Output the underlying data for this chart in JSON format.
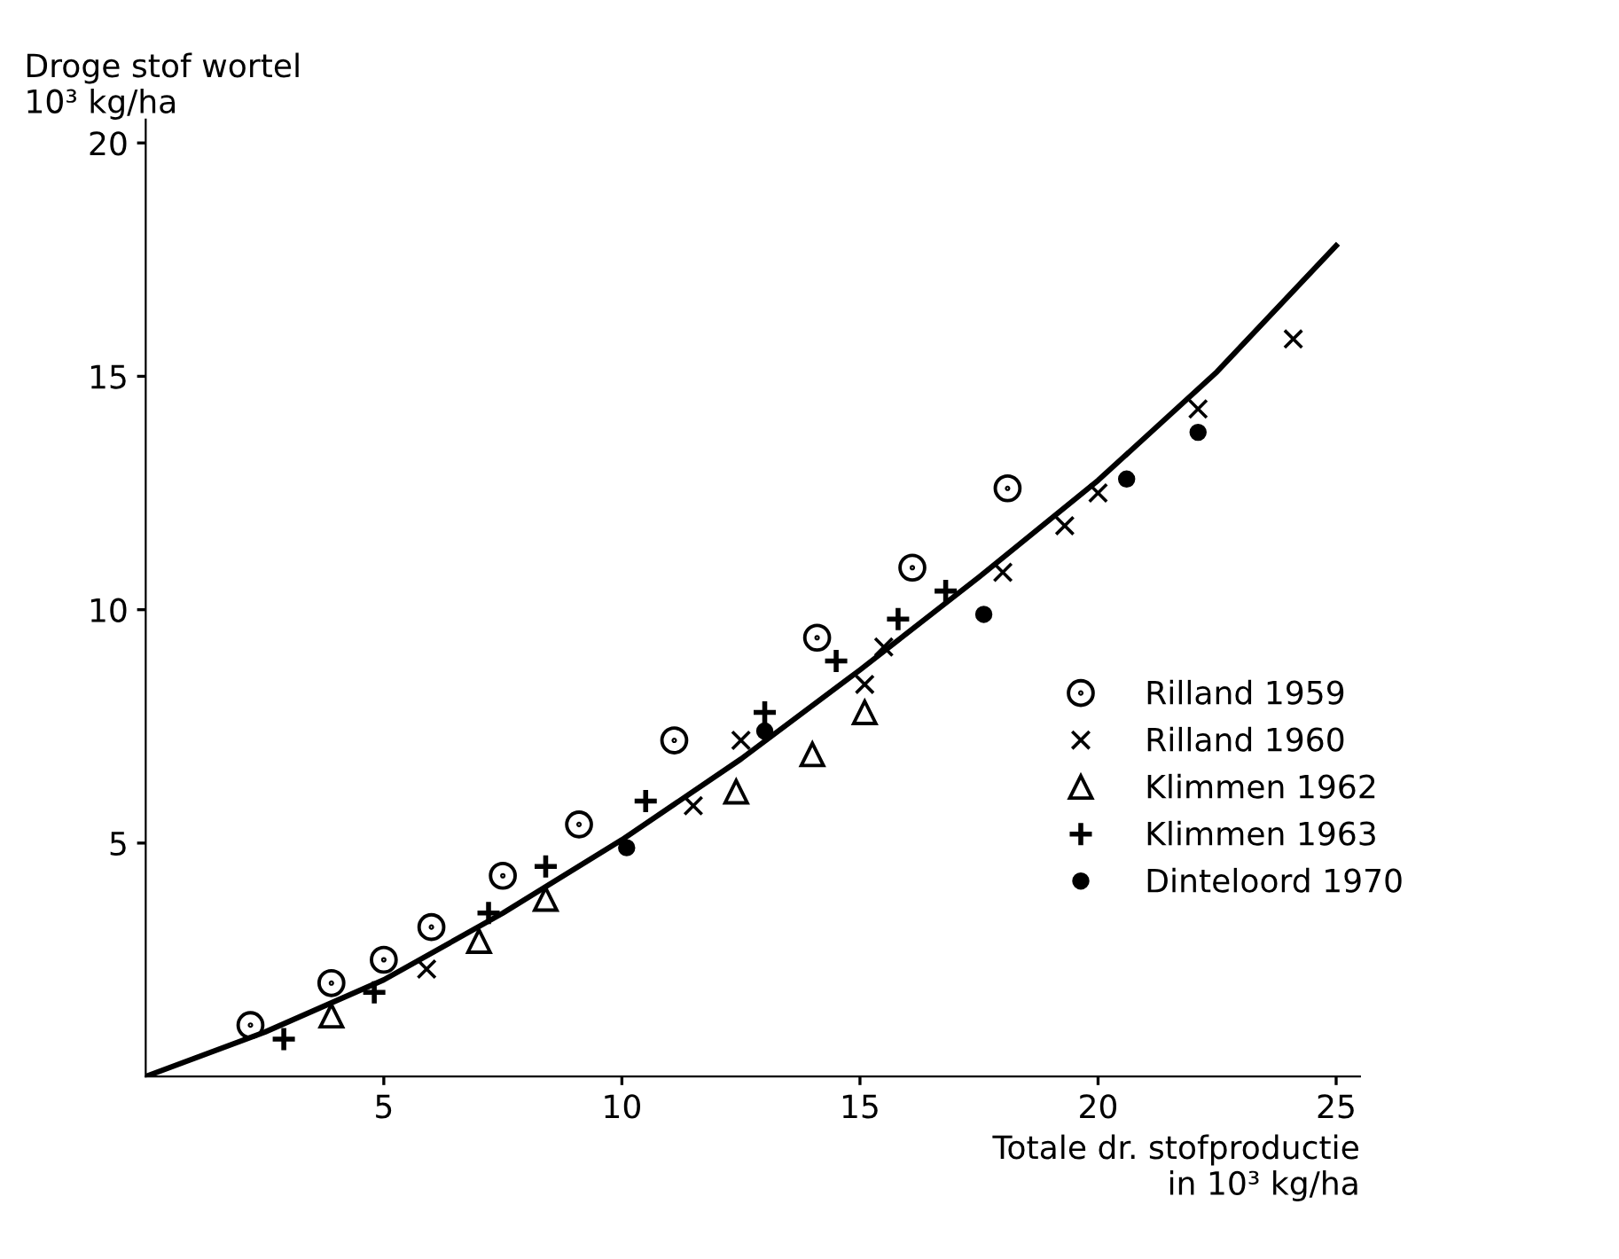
{
  "chart_data": {
    "type": "scatter",
    "xlabel": "Totale dr. stofproductie\nin 10³ kg/ha",
    "ylabel": "Droge stof wortel\n10³ kg/ha",
    "xlim": [
      0,
      25.5
    ],
    "ylim": [
      0,
      20.5
    ],
    "xticks": [
      5,
      10,
      15,
      20,
      25
    ],
    "yticks": [
      5,
      10,
      15,
      20
    ],
    "grid": false,
    "legend": "right",
    "series": [
      {
        "name": "Rilland 1959",
        "color": "#000000",
        "marker": "circle",
        "x": [
          2.2,
          3.9,
          5.0,
          6.0,
          7.5,
          9.1,
          11.1,
          14.1,
          16.1,
          18.1
        ],
        "values": [
          1.1,
          2.0,
          2.5,
          3.2,
          4.3,
          5.4,
          7.2,
          9.4,
          10.9,
          12.6
        ]
      },
      {
        "name": "Rilland 1960",
        "color": "#000000",
        "marker": "x",
        "x": [
          5.9,
          11.5,
          12.5,
          15.1,
          15.5,
          18.0,
          19.3,
          20.0,
          22.1,
          24.1
        ],
        "values": [
          2.3,
          5.8,
          7.2,
          8.4,
          9.2,
          10.8,
          11.8,
          12.5,
          14.3,
          15.8
        ]
      },
      {
        "name": "Klimmen 1962",
        "color": "#000000",
        "marker": "triangle",
        "x": [
          3.9,
          7.0,
          8.4,
          12.4,
          14.0,
          15.1
        ],
        "values": [
          1.3,
          2.9,
          3.8,
          6.1,
          6.9,
          7.8
        ]
      },
      {
        "name": "Klimmen 1963",
        "color": "#000000",
        "marker": "cross",
        "x": [
          2.9,
          4.8,
          7.2,
          8.4,
          10.5,
          13.0,
          14.5,
          15.8,
          16.8
        ],
        "values": [
          0.8,
          1.8,
          3.5,
          4.5,
          5.9,
          7.8,
          8.9,
          9.8,
          10.4
        ]
      },
      {
        "name": "Dinteloord 1970",
        "color": "#000000",
        "marker": "point",
        "x": [
          10.1,
          13.0,
          17.6,
          20.6,
          22.1
        ],
        "values": [
          4.9,
          7.4,
          9.9,
          12.8,
          13.8
        ]
      },
      {
        "type": "line",
        "color": "#000000",
        "line_style": "solid",
        "marker": "none",
        "x": [
          0,
          2.5,
          5,
          7.5,
          10,
          12.5,
          15,
          17.5,
          20,
          22.5,
          25
        ],
        "values": [
          0,
          0.95,
          2.07,
          3.5,
          5.07,
          6.8,
          8.71,
          10.7,
          12.77,
          15.1,
          17.8
        ]
      }
    ]
  }
}
